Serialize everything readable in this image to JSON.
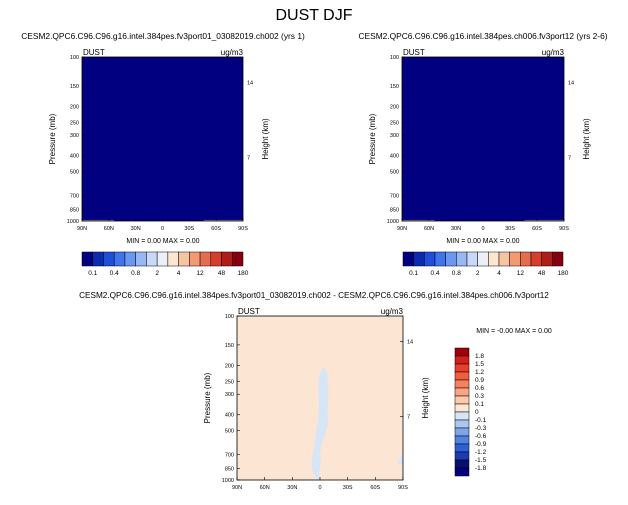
{
  "page_title": "DUST DJF",
  "chart_data": [
    {
      "type": "heatmap",
      "title": "CESM2.QPC6.C96.C96.g16.intel.384pes.fv3port01_03082019.ch002 (yrs 1)",
      "left_label": "DUST",
      "right_label": "ug/m3",
      "xlabel": "",
      "ylabel": "Pressure (mb)",
      "ylabel_right": "Height (km)",
      "x_ticks": [
        "90N",
        "60N",
        "30N",
        "0",
        "30S",
        "60S",
        "90S"
      ],
      "y_ticks": [
        100,
        150,
        200,
        250,
        300,
        400,
        500,
        700,
        850,
        1000
      ],
      "y_right_ticks": [
        14,
        7
      ],
      "ylim": [
        1000,
        100
      ],
      "y_scale": "log",
      "field_value": 0.0,
      "field_color": "#000080",
      "stats": "MIN =   0.00   MAX =   0.00",
      "min": 0.0,
      "max": 0.0,
      "surface_mask": [
        {
          "x": [
            -90,
            -54
          ],
          "p_top": 985,
          "color": "#8c8c8c"
        },
        {
          "x": [
            46,
            90
          ],
          "p_top": 985,
          "color": "#8c8c8c"
        }
      ]
    },
    {
      "type": "heatmap",
      "title": "CESM2.QPC6.C96.C96.g16.intel.384pes.ch006.fv3port12 (yrs 2-6)",
      "left_label": "DUST",
      "right_label": "ug/m3",
      "xlabel": "",
      "ylabel": "Pressure (mb)",
      "ylabel_right": "Height (km)",
      "x_ticks": [
        "90N",
        "60N",
        "30N",
        "0",
        "30S",
        "60S",
        "90S"
      ],
      "y_ticks": [
        100,
        150,
        200,
        250,
        300,
        400,
        500,
        700,
        850,
        1000
      ],
      "y_right_ticks": [
        14,
        7
      ],
      "ylim": [
        1000,
        100
      ],
      "y_scale": "log",
      "field_value": 0.0,
      "field_color": "#000080",
      "stats": "MIN =   0.00   MAX =   0.00",
      "min": 0.0,
      "max": 0.0,
      "surface_mask": [
        {
          "x": [
            -90,
            -54
          ],
          "p_top": 985,
          "color": "#8c8c8c"
        },
        {
          "x": [
            46,
            90
          ],
          "p_top": 985,
          "color": "#8c8c8c"
        }
      ]
    },
    {
      "type": "heatmap",
      "title": "CESM2.QPC6.C96.C96.g16.intel.384pes.fv3port01_03082019.ch002 - CESM2.QPC6.C96.C96.g16.intel.384pes.ch006.fv3port12",
      "left_label": "DUST",
      "right_label": "ug/m3",
      "xlabel": "",
      "ylabel": "Pressure (mb)",
      "ylabel_right": "Height (km)",
      "x_ticks": [
        "90N",
        "60N",
        "30N",
        "0",
        "30S",
        "60S",
        "90S"
      ],
      "y_ticks": [
        100,
        150,
        200,
        250,
        300,
        400,
        500,
        700,
        850,
        1000
      ],
      "y_right_ticks": [
        14,
        7
      ],
      "ylim": [
        1000,
        100
      ],
      "y_scale": "log",
      "background_value": 0.0,
      "background_color": "#fde5d3",
      "stats": "MIN =  -0.00   MAX =   0.00",
      "min": -0.0,
      "max": 0.0,
      "negative_regions": [
        {
          "color": "#d6e6f7",
          "points": [
            [
              -3,
              1000
            ],
            [
              -8,
              900
            ],
            [
              -9,
              800
            ],
            [
              -8,
              700
            ],
            [
              -6,
              600
            ],
            [
              -4,
              500
            ],
            [
              -2,
              430
            ],
            [
              -1,
              330
            ],
            [
              -2,
              280
            ],
            [
              -1,
              240
            ],
            [
              1,
              220
            ],
            [
              3,
              205
            ],
            [
              7,
              215
            ],
            [
              9,
              260
            ],
            [
              9,
              330
            ],
            [
              8,
              400
            ],
            [
              9,
              450
            ],
            [
              6,
              520
            ],
            [
              2,
              600
            ],
            [
              0,
              700
            ],
            [
              1,
              800
            ],
            [
              -1,
              900
            ],
            [
              0,
              1000
            ]
          ]
        },
        {
          "color": "#d6e6f7",
          "points": [
            [
              84,
              775
            ],
            [
              88,
              725
            ],
            [
              90,
              690
            ],
            [
              90,
              805
            ],
            [
              86,
              805
            ]
          ]
        }
      ]
    }
  ],
  "colorbars": [
    {
      "labels": [
        "0.1",
        "0.4",
        "0.8",
        "2",
        "4",
        "12",
        "48",
        "180"
      ],
      "colors": [
        "#000080",
        "#0a2ab0",
        "#1d4fdc",
        "#3f74ec",
        "#6a97f2",
        "#98b8f5",
        "#c7d8f8",
        "#eceff6",
        "#fde5d3",
        "#f8c3a1",
        "#f29a74",
        "#e56c4c",
        "#d63e2b",
        "#b01d16",
        "#85000c"
      ]
    },
    {
      "labels": [
        "0.1",
        "0.4",
        "0.8",
        "2",
        "4",
        "12",
        "48",
        "180"
      ],
      "colors": [
        "#000080",
        "#0a2ab0",
        "#1d4fdc",
        "#3f74ec",
        "#6a97f2",
        "#98b8f5",
        "#c7d8f8",
        "#eceff6",
        "#fde5d3",
        "#f8c3a1",
        "#f29a74",
        "#e56c4c",
        "#d63e2b",
        "#b01d16",
        "#85000c"
      ]
    },
    {
      "labels": [
        "1.8",
        "1.5",
        "1.2",
        "0.9",
        "0.6",
        "0.3",
        "0.1",
        "0",
        "-0.1",
        "-0.3",
        "-0.6",
        "-0.9",
        "-1.2",
        "-1.5",
        "-1.8"
      ],
      "colors": [
        "#a0000c",
        "#d41f1a",
        "#ea3d2c",
        "#f35d3e",
        "#f68160",
        "#f9a487",
        "#fcc9ad",
        "#fde5d3",
        "#d6e6f7",
        "#aac6f1",
        "#7ea5ea",
        "#5183e3",
        "#2e5fd6",
        "#1b3bb1",
        "#08106f",
        "#000080"
      ]
    }
  ]
}
